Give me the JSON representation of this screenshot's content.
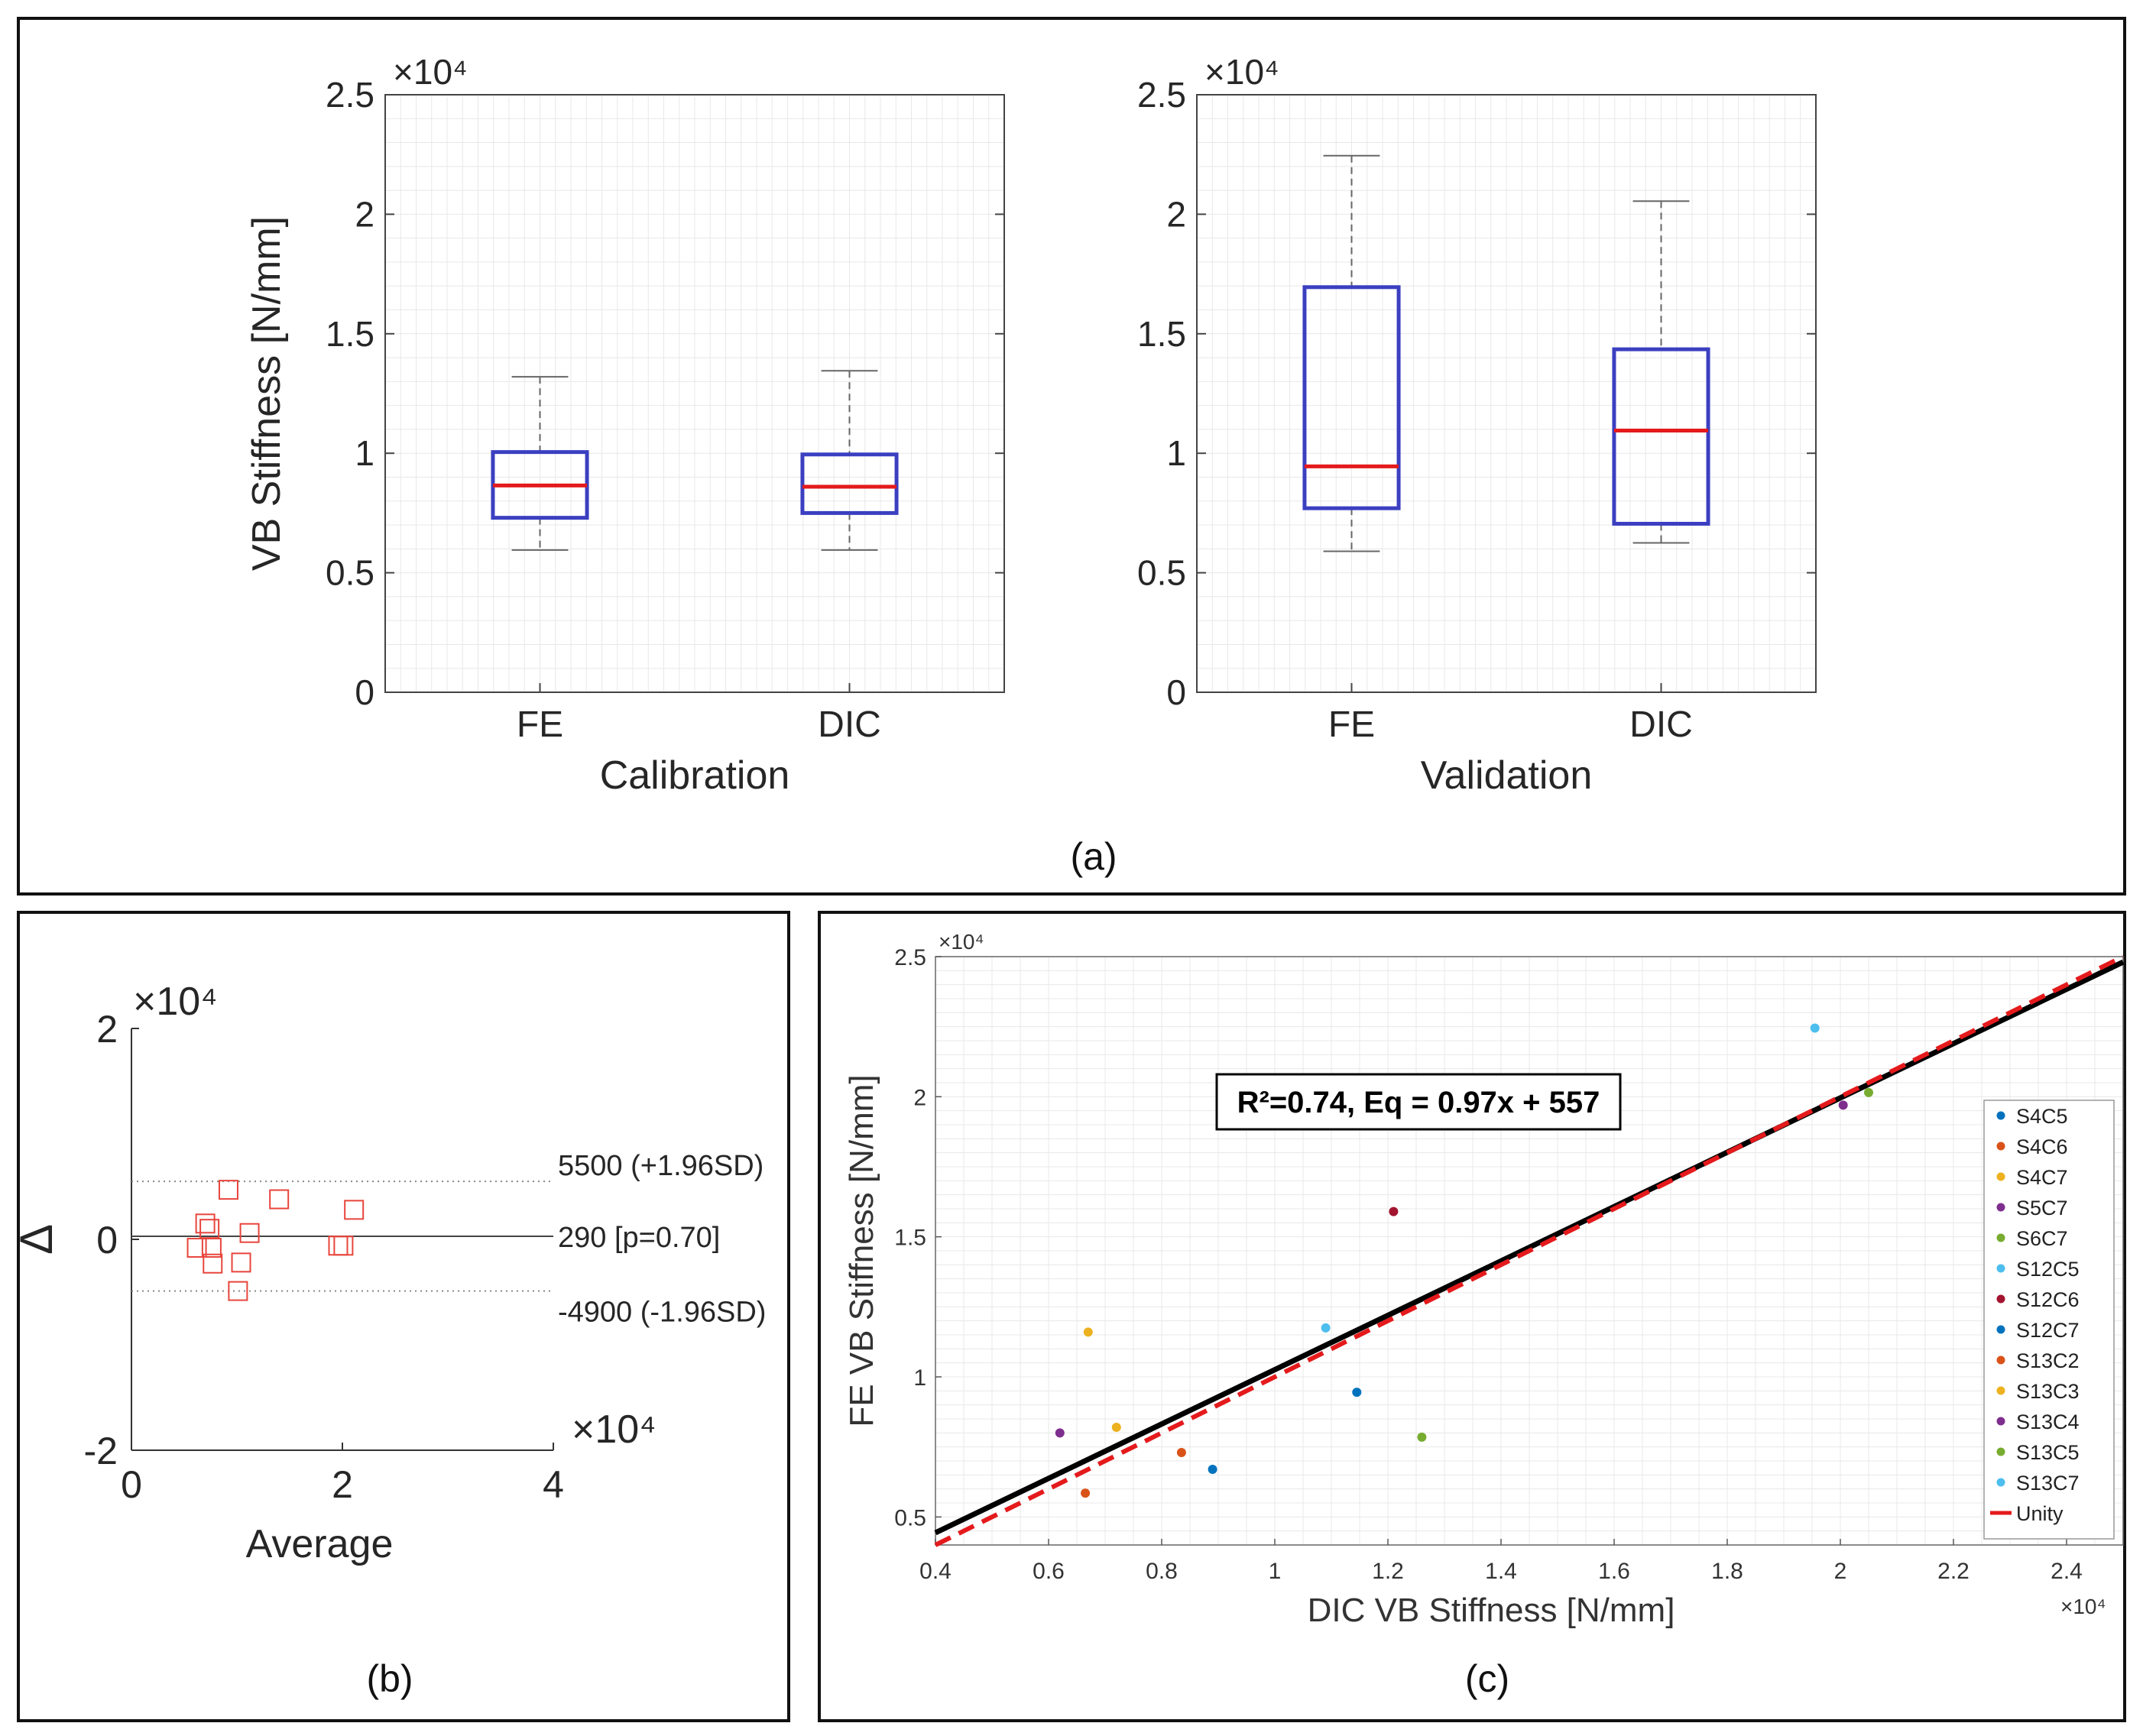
{
  "chart_data": [
    {
      "id": "a-left",
      "type": "box",
      "xlabel": "Calibration",
      "ylabel": "VB Stiffness [N/mm]",
      "exponent": "×10⁴",
      "ylim": [
        0,
        25000
      ],
      "yticks": [
        0,
        5000,
        10000,
        15000,
        20000,
        25000
      ],
      "ytick_labels": [
        "0",
        "0.5",
        "1",
        "1.5",
        "2",
        "2.5"
      ],
      "categories": [
        "FE",
        "DIC"
      ],
      "boxes": [
        {
          "label": "FE",
          "whisker_low": 5950,
          "q1": 7300,
          "median": 8650,
          "q3": 10050,
          "whisker_high": 13200
        },
        {
          "label": "DIC",
          "whisker_low": 5950,
          "q1": 7500,
          "median": 8600,
          "q3": 9950,
          "whisker_high": 13450
        }
      ]
    },
    {
      "id": "a-right",
      "type": "box",
      "xlabel": "Validation",
      "ylabel": "",
      "exponent": "×10⁴",
      "ylim": [
        0,
        25000
      ],
      "yticks": [
        0,
        5000,
        10000,
        15000,
        20000,
        25000
      ],
      "ytick_labels": [
        "0",
        "0.5",
        "1",
        "1.5",
        "2",
        "2.5"
      ],
      "categories": [
        "FE",
        "DIC"
      ],
      "boxes": [
        {
          "label": "FE",
          "whisker_low": 5900,
          "q1": 7700,
          "median": 9450,
          "q3": 16950,
          "whisker_high": 22450
        },
        {
          "label": "DIC",
          "whisker_low": 6250,
          "q1": 7050,
          "median": 10950,
          "q3": 14350,
          "whisker_high": 20550
        }
      ]
    },
    {
      "id": "b",
      "type": "scatter",
      "subtype": "bland-altman",
      "xlabel": "Average",
      "ylabel": "Δ",
      "exponent": "×10⁴",
      "xlim": [
        0,
        40000
      ],
      "ylim": [
        -20000,
        20000
      ],
      "xticks": [
        0,
        20000,
        40000
      ],
      "xtick_labels": [
        "0",
        "2",
        "4"
      ],
      "yticks": [
        -20000,
        0,
        20000
      ],
      "ytick_labels": [
        "-2",
        "0",
        "2"
      ],
      "points": [
        {
          "x": 6200,
          "y": -800
        },
        {
          "x": 7000,
          "y": 1500
        },
        {
          "x": 7400,
          "y": 1000
        },
        {
          "x": 7600,
          "y": -800
        },
        {
          "x": 7700,
          "y": -2300
        },
        {
          "x": 9200,
          "y": 4700
        },
        {
          "x": 10100,
          "y": -4900
        },
        {
          "x": 10400,
          "y": -2200
        },
        {
          "x": 11200,
          "y": 600
        },
        {
          "x": 14000,
          "y": 3800
        },
        {
          "x": 19600,
          "y": -600
        },
        {
          "x": 20100,
          "y": -600
        },
        {
          "x": 21100,
          "y": 2800
        }
      ],
      "reference_lines": [
        {
          "y": 5500,
          "label": "5500 (+1.96SD)",
          "style": "dotted"
        },
        {
          "y": 290,
          "label": "290 [p=0.70]",
          "style": "solid"
        },
        {
          "y": -4900,
          "label": "-4900 (-1.96SD)",
          "style": "dotted"
        }
      ]
    },
    {
      "id": "c",
      "type": "scatter",
      "xlabel": "DIC VB Stiffness [N/mm]",
      "ylabel": "FE VB Stiffness [N/mm]",
      "exponent_x": "×10⁴",
      "exponent_y": "×10⁴",
      "xlim": [
        4000,
        25000
      ],
      "ylim": [
        4000,
        25000
      ],
      "xticks": [
        4000,
        6000,
        8000,
        10000,
        12000,
        14000,
        16000,
        18000,
        20000,
        22000,
        24000
      ],
      "xtick_labels": [
        "0.4",
        "0.6",
        "0.8",
        "1",
        "1.2",
        "1.4",
        "1.6",
        "1.8",
        "2",
        "2.2",
        "2.4"
      ],
      "yticks": [
        5000,
        10000,
        15000,
        20000,
        25000
      ],
      "ytick_labels": [
        "0.5",
        "1",
        "1.5",
        "2",
        "2.5"
      ],
      "annotation": "R²=0.74, Eq = 0.97x + 557",
      "fit_line": {
        "slope": 0.97,
        "intercept": 557,
        "color": "#000000"
      },
      "unity_line": {
        "slope": 1,
        "intercept": 0,
        "color": "#e41a1c"
      },
      "series": [
        {
          "name": "S4C5",
          "color": "#0072BD",
          "x": 8900,
          "y": 6700
        },
        {
          "name": "S4C6",
          "color": "#D95319",
          "x": 8350,
          "y": 7300
        },
        {
          "name": "S4C7",
          "color": "#EDB120",
          "x": 7200,
          "y": 8200
        },
        {
          "name": "S5C7",
          "color": "#7E2F8E",
          "x": 20050,
          "y": 19700
        },
        {
          "name": "S6C7",
          "color": "#77AC30",
          "x": 20500,
          "y": 20150
        },
        {
          "name": "S12C5",
          "color": "#4DBEEE",
          "x": 10900,
          "y": 11750
        },
        {
          "name": "S12C6",
          "color": "#A2142F",
          "x": 12100,
          "y": 15900
        },
        {
          "name": "S12C7",
          "color": "#0072BD",
          "x": 11450,
          "y": 9450
        },
        {
          "name": "S13C2",
          "color": "#D95319",
          "x": 6650,
          "y": 5850
        },
        {
          "name": "S13C3",
          "color": "#EDB120",
          "x": 6700,
          "y": 11600
        },
        {
          "name": "S13C4",
          "color": "#7E2F8E",
          "x": 6200,
          "y": 8000
        },
        {
          "name": "S13C5",
          "color": "#77AC30",
          "x": 12600,
          "y": 7850
        },
        {
          "name": "S13C7",
          "color": "#4DBEEE",
          "x": 19550,
          "y": 22450
        }
      ],
      "legend_extra": {
        "name": "Unity",
        "color": "#e41a1c"
      }
    }
  ],
  "panel_labels": {
    "a": "(a)",
    "b": "(b)",
    "c": "(c)"
  },
  "colors": {
    "box": "#3b3fc0",
    "median": "#e41a1c",
    "whisker": "#666666",
    "grid": "#e8e8e8",
    "ba_marker": "#e8453c"
  }
}
